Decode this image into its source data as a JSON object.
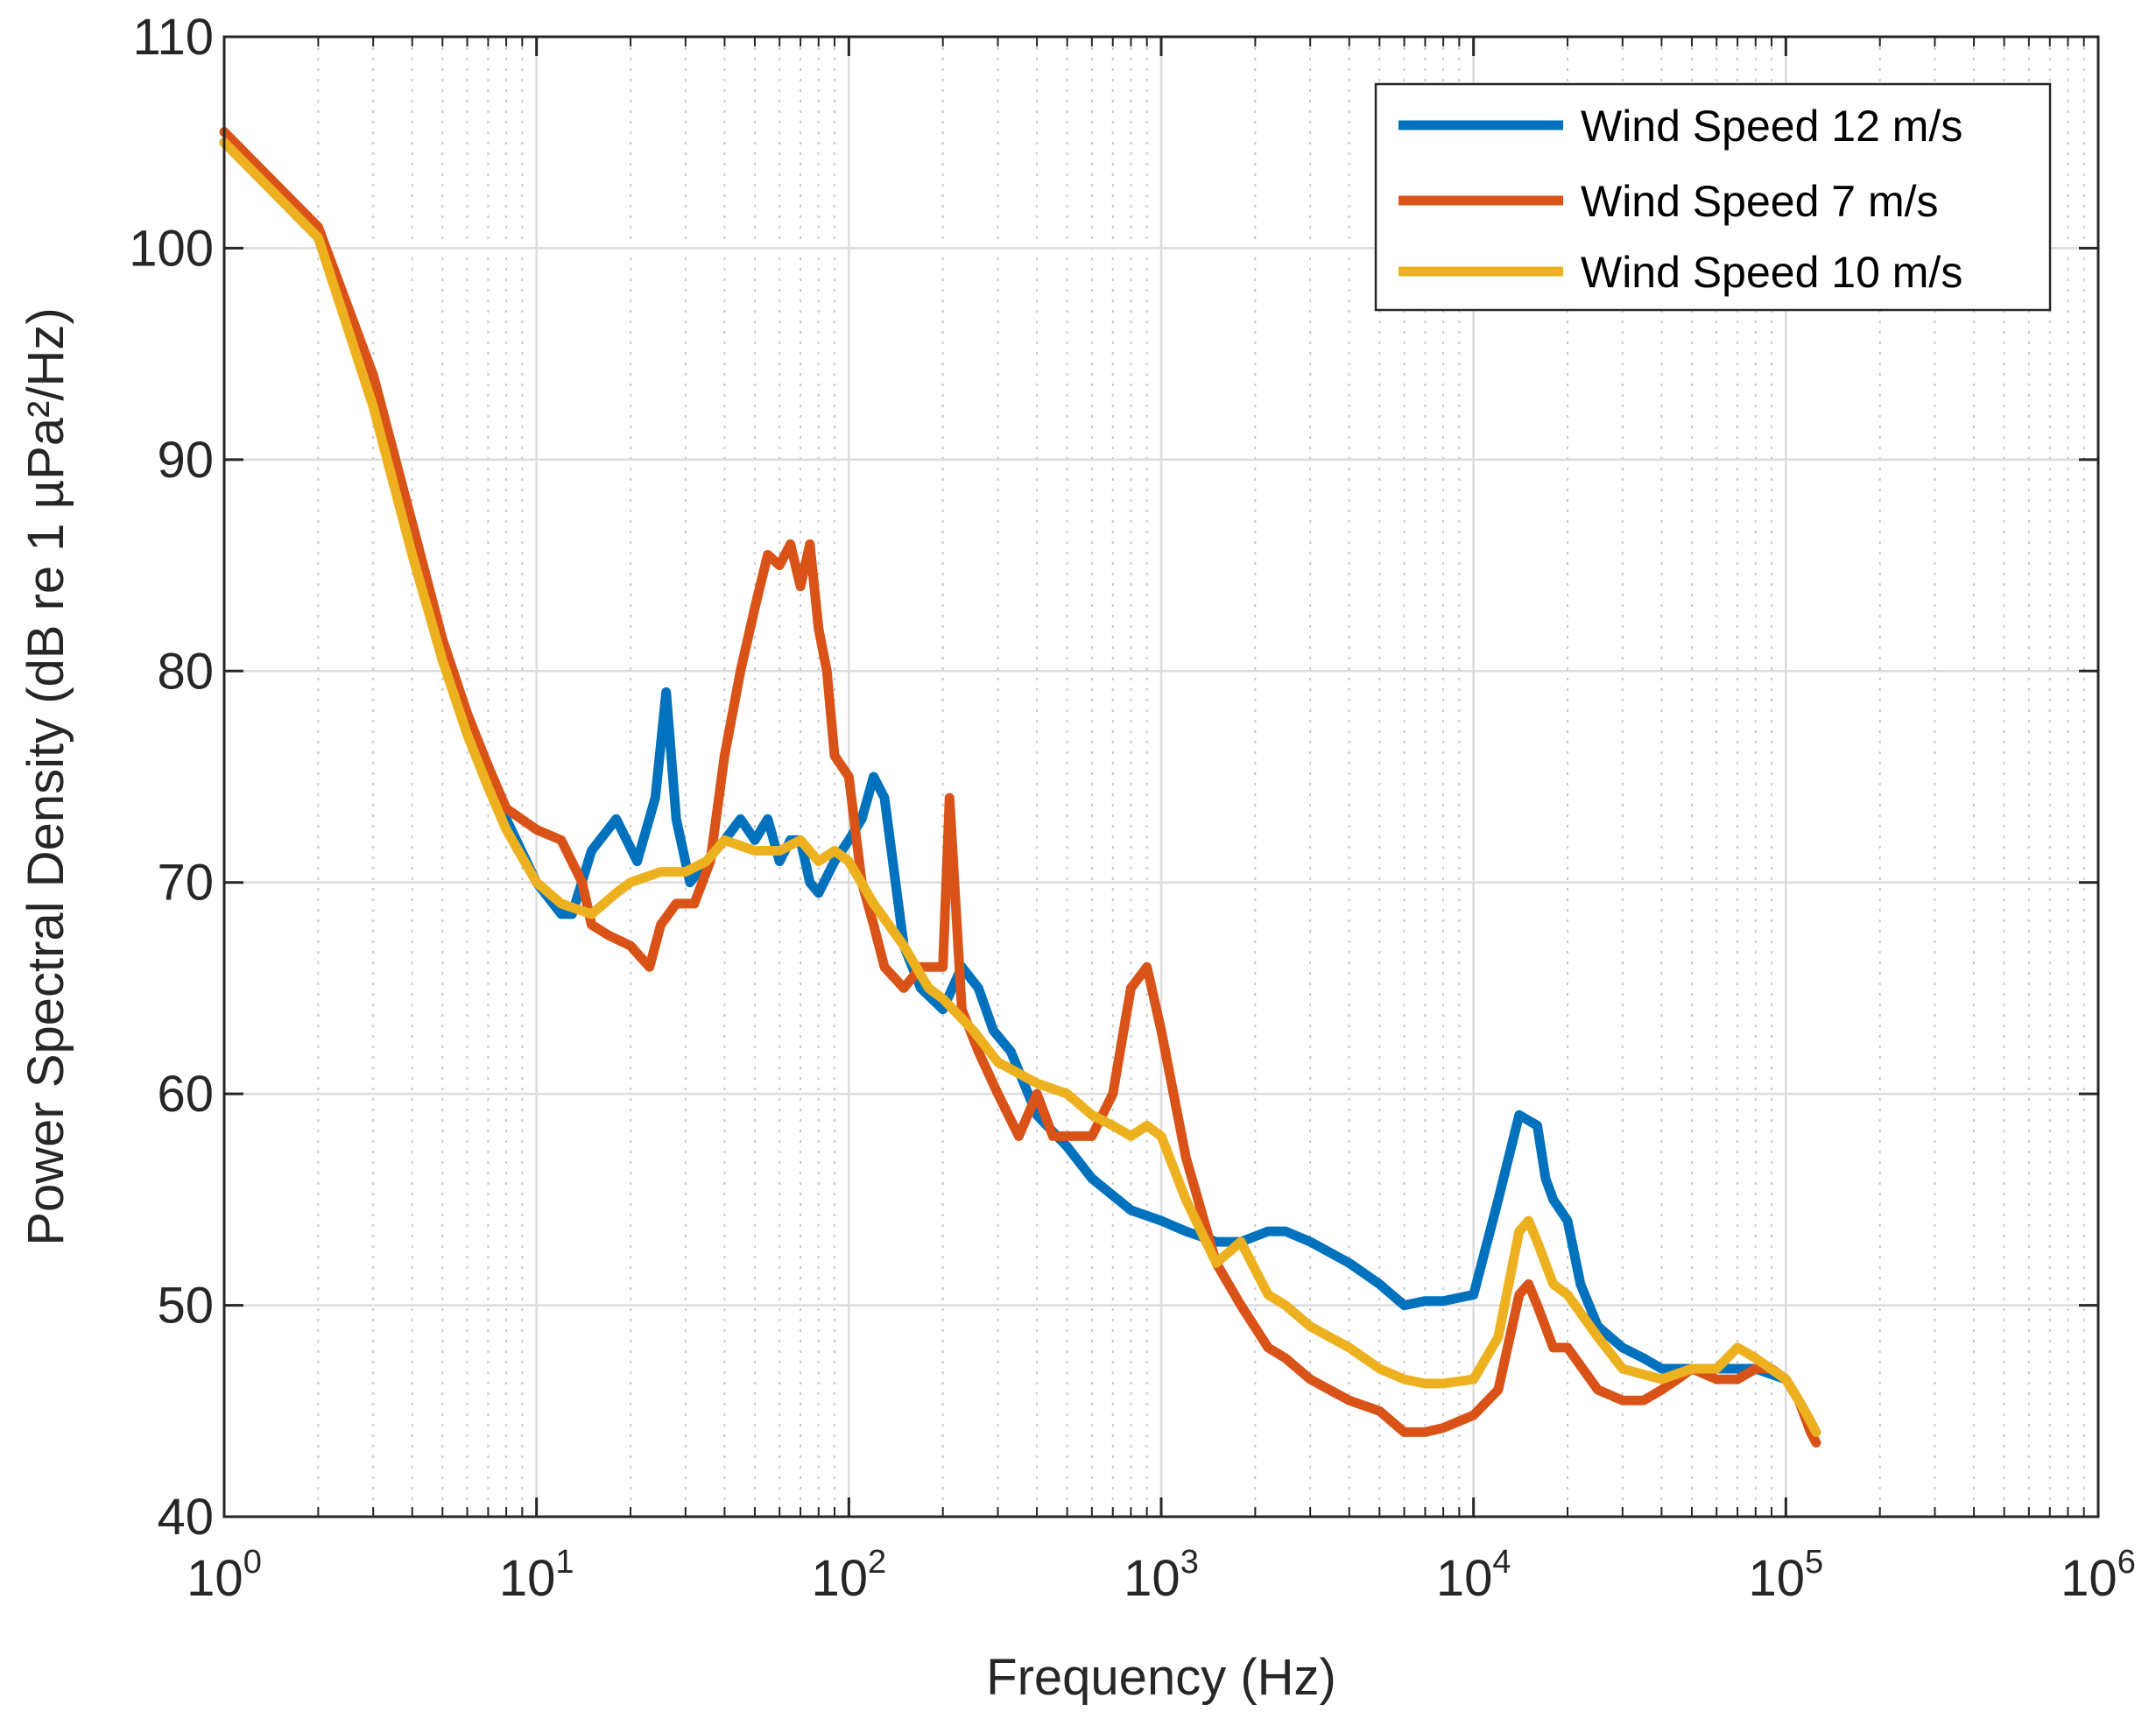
{
  "chart_data": {
    "type": "line",
    "xscale": "log",
    "xlabel": "Frequency (Hz)",
    "ylabel": "Power Spectral Density (dB re 1 µPa²/Hz)",
    "xlim": [
      1,
      1000000
    ],
    "ylim": [
      40,
      110
    ],
    "xticks": [
      {
        "base": "10",
        "exp": "0"
      },
      {
        "base": "10",
        "exp": "1"
      },
      {
        "base": "10",
        "exp": "2"
      },
      {
        "base": "10",
        "exp": "3"
      },
      {
        "base": "10",
        "exp": "4"
      },
      {
        "base": "10",
        "exp": "5"
      },
      {
        "base": "10",
        "exp": "6"
      }
    ],
    "yticks": [
      "40",
      "50",
      "60",
      "70",
      "80",
      "90",
      "100",
      "110"
    ],
    "grid": true,
    "legend_position": "top-right",
    "series": [
      {
        "name": "Wind Speed 12 m/s",
        "color": "#0072BD",
        "x": [
          1,
          2,
          3,
          4,
          5,
          6,
          7,
          8,
          10,
          12,
          13,
          15,
          18,
          21,
          24,
          26,
          28,
          31,
          35,
          40,
          45,
          50,
          55,
          60,
          65,
          70,
          75,
          80,
          90,
          100,
          110,
          120,
          130,
          150,
          170,
          200,
          230,
          260,
          290,
          330,
          400,
          500,
          600,
          800,
          1000,
          1200,
          1500,
          1800,
          2200,
          2500,
          3000,
          4000,
          5000,
          6000,
          7000,
          8000,
          10000,
          12000,
          14000,
          16000,
          17000,
          18000,
          20000,
          22000,
          25000,
          30000,
          35000,
          40000,
          50000,
          60000,
          70000,
          80000,
          100000,
          110000,
          120000,
          125000
        ],
        "y": [
          105,
          100.5,
          93,
          86,
          81,
          77.5,
          75,
          73,
          70,
          68.5,
          68.5,
          71.5,
          73,
          71,
          74,
          79,
          73,
          70,
          71,
          72,
          73,
          72,
          73,
          71,
          72,
          72,
          70,
          69.5,
          71,
          72,
          73,
          75,
          74,
          67,
          65,
          64,
          66,
          65,
          63,
          62,
          59,
          57.5,
          56,
          54.5,
          54,
          53.5,
          53,
          53,
          53.5,
          53.5,
          53,
          52,
          51,
          50,
          50.2,
          50.2,
          50.5,
          55,
          59,
          58.5,
          56,
          55,
          54,
          51,
          49,
          48,
          47.5,
          47,
          47,
          47,
          47,
          47,
          46.5,
          45.5,
          44.5,
          44
        ]
      },
      {
        "name": "Wind Speed 7 m/s",
        "color": "#D95319",
        "x": [
          1,
          2,
          3,
          4,
          5,
          6,
          7,
          8,
          10,
          12,
          14,
          15,
          17,
          20,
          23,
          25,
          28,
          32,
          36,
          40,
          45,
          50,
          55,
          60,
          65,
          70,
          75,
          80,
          85,
          90,
          100,
          110,
          120,
          130,
          150,
          170,
          200,
          210,
          230,
          260,
          300,
          350,
          400,
          450,
          500,
          600,
          700,
          800,
          900,
          1000,
          1200,
          1500,
          1800,
          2200,
          2500,
          3000,
          4000,
          5000,
          6000,
          7000,
          8000,
          10000,
          12000,
          14000,
          15000,
          16000,
          18000,
          20000,
          25000,
          30000,
          35000,
          40000,
          45000,
          50000,
          60000,
          70000,
          80000,
          90000,
          100000,
          110000,
          120000,
          125000
        ],
        "y": [
          105.5,
          101,
          94,
          87,
          81.5,
          78,
          75.5,
          73.5,
          72.5,
          72,
          70,
          68,
          67.5,
          67,
          66,
          68,
          69,
          69,
          71,
          76,
          80,
          83,
          85.5,
          85,
          86,
          84,
          86,
          82,
          80,
          76,
          75,
          70,
          68,
          66,
          65,
          66,
          66,
          74,
          64,
          62,
          60,
          58,
          60,
          58,
          58,
          58,
          60,
          65,
          66,
          63,
          57,
          52,
          50,
          48,
          47.5,
          46.5,
          45.5,
          45,
          44,
          44,
          44.2,
          44.8,
          46,
          50.5,
          51,
          50,
          48,
          48,
          46,
          45.5,
          45.5,
          46,
          46.5,
          47,
          46.5,
          46.5,
          47,
          47,
          46.5,
          45.5,
          44,
          43.5
        ]
      },
      {
        "name": "Wind Speed 10 m/s",
        "color": "#EDB120",
        "x": [
          1,
          2,
          3,
          4,
          5,
          6,
          7,
          8,
          10,
          12,
          15,
          18,
          20,
          25,
          30,
          35,
          40,
          50,
          60,
          70,
          80,
          90,
          100,
          120,
          150,
          180,
          200,
          250,
          300,
          400,
          500,
          600,
          700,
          800,
          900,
          1000,
          1200,
          1500,
          1800,
          2200,
          2500,
          3000,
          4000,
          5000,
          6000,
          7000,
          8000,
          10000,
          12000,
          14000,
          15000,
          16000,
          18000,
          20000,
          25000,
          30000,
          40000,
          50000,
          60000,
          70000,
          80000,
          100000,
          110000,
          120000,
          125000
        ],
        "y": [
          105,
          100.5,
          92.5,
          85.5,
          80.5,
          77,
          74.5,
          72.5,
          70,
          69,
          68.5,
          69.5,
          70,
          70.5,
          70.5,
          71,
          72,
          71.5,
          71.5,
          72,
          71,
          71.5,
          71,
          69,
          67,
          65,
          64.5,
          63,
          61.5,
          60.5,
          60,
          59,
          58.5,
          58,
          58.5,
          58,
          55,
          52,
          53,
          50.5,
          50,
          49,
          48,
          47,
          46.5,
          46.3,
          46.3,
          46.5,
          48.5,
          53.5,
          54,
          53,
          51,
          50.5,
          48.5,
          47,
          46.5,
          47,
          47,
          48,
          47.5,
          46.5,
          45.5,
          44.5,
          44
        ]
      }
    ]
  }
}
